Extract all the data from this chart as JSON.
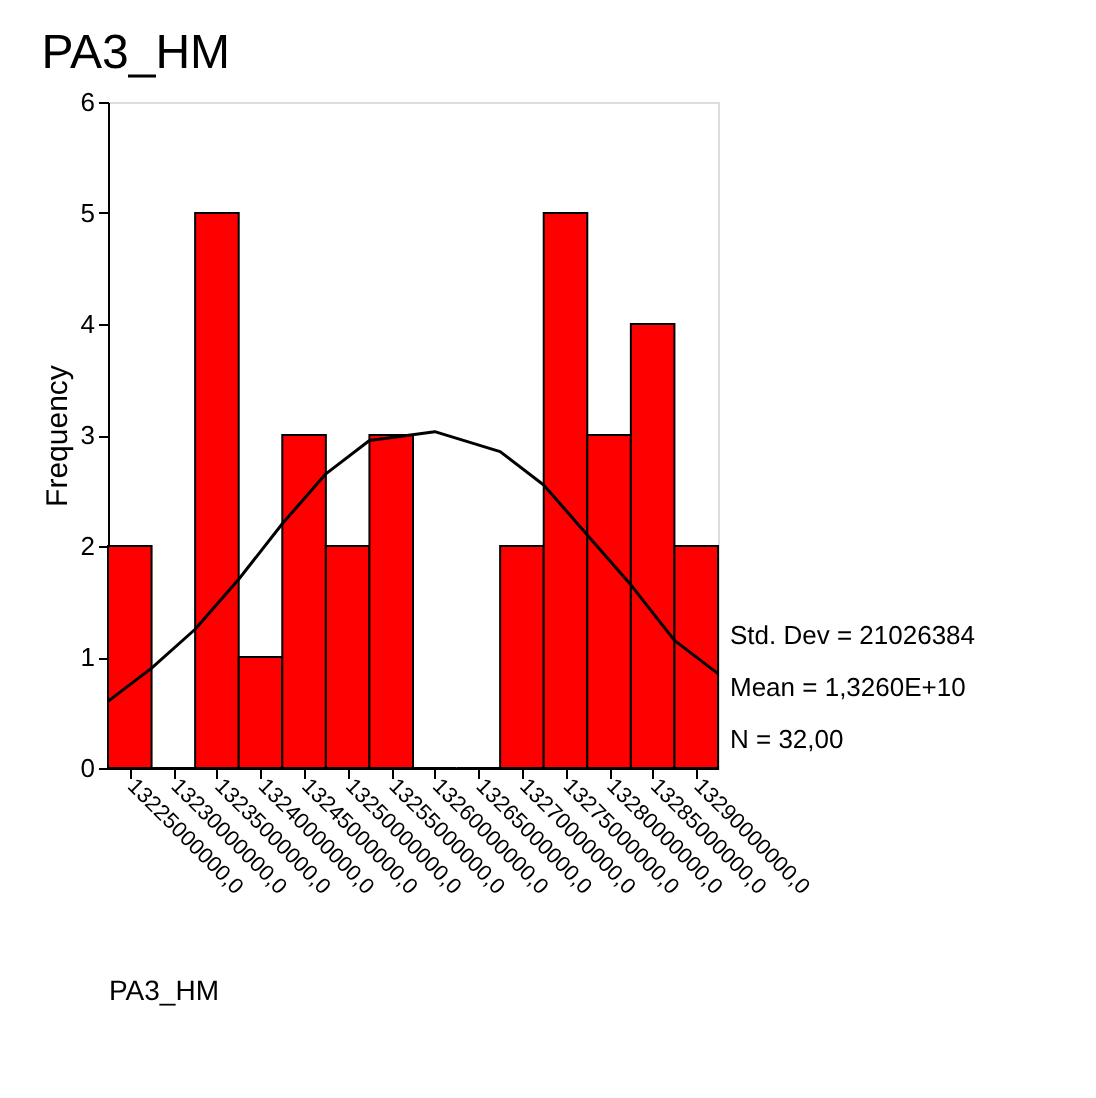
{
  "chart_data": {
    "type": "histogram",
    "title": "PA3_HM",
    "xlabel": "PA3_HM",
    "ylabel": "Frequency",
    "bins": [
      13222500000,
      13227500000,
      13232500000,
      13237500000,
      13242500000,
      13247500000,
      13252500000,
      13257500000,
      13262500000,
      13267500000,
      13272500000,
      13277500000,
      13282500000,
      13287500000,
      13292500000
    ],
    "values": [
      2,
      0,
      5,
      1,
      3,
      2,
      3,
      0,
      0,
      2,
      5,
      3,
      4,
      2
    ],
    "color": "#ff0000",
    "series": [
      {
        "type": "line",
        "color": "#000000",
        "x": [
          13222500000,
          13227500000,
          13232500000,
          13237500000,
          13242500000,
          13247500000,
          13252500000,
          13260000000,
          13267500000,
          13272500000,
          13277500000,
          13282500000,
          13287500000,
          13292500000
        ],
        "values": [
          0.6,
          0.9,
          1.25,
          1.7,
          2.2,
          2.65,
          2.95,
          3.03,
          2.85,
          2.55,
          2.1,
          1.65,
          1.15,
          0.85
        ]
      }
    ],
    "xlim": [
      13222500000,
      13292500000
    ],
    "xticks": [
      {
        "value": 13225000000,
        "label": "13225000000,0"
      },
      {
        "value": 13230000000,
        "label": "13230000000,0"
      },
      {
        "value": 13235000000,
        "label": "13235000000,0"
      },
      {
        "value": 13240000000,
        "label": "13240000000,0"
      },
      {
        "value": 13245000000,
        "label": "13245000000,0"
      },
      {
        "value": 13250000000,
        "label": "13250000000,0"
      },
      {
        "value": 13255000000,
        "label": "13255000000,0"
      },
      {
        "value": 13260000000,
        "label": "13260000000,0"
      },
      {
        "value": 13265000000,
        "label": "13265000000,0"
      },
      {
        "value": 13270000000,
        "label": "13270000000,0"
      },
      {
        "value": 13275000000,
        "label": "13275000000,0"
      },
      {
        "value": 13280000000,
        "label": "13280000000,0"
      },
      {
        "value": 13285000000,
        "label": "13285000000,0"
      },
      {
        "value": 13290000000,
        "label": "13290000000,0"
      }
    ],
    "ylim": [
      0,
      6
    ],
    "yticks": [
      0,
      1,
      2,
      3,
      4,
      5,
      6
    ],
    "grid": false,
    "annotations": [
      "Std. Dev = 21026384",
      "Mean = 1,3260E+10",
      "N = 32,00"
    ]
  }
}
